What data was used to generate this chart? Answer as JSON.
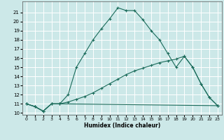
{
  "xlabel": "Humidex (Indice chaleur)",
  "bg_color": "#cce8e8",
  "grid_color": "#ffffff",
  "line_color": "#1a6b5a",
  "xlim": [
    -0.5,
    23.5
  ],
  "ylim": [
    9.8,
    22.2
  ],
  "xticks": [
    0,
    1,
    2,
    3,
    4,
    5,
    6,
    7,
    8,
    9,
    10,
    11,
    12,
    13,
    14,
    15,
    16,
    17,
    18,
    19,
    20,
    21,
    22,
    23
  ],
  "yticks": [
    10,
    11,
    12,
    13,
    14,
    15,
    16,
    17,
    18,
    19,
    20,
    21
  ],
  "line1_x": [
    0,
    1,
    2,
    3,
    4,
    5,
    6,
    7,
    8,
    9,
    10,
    11,
    12,
    13,
    14,
    15,
    16,
    17,
    18,
    19,
    20,
    21,
    22,
    23
  ],
  "line1_y": [
    11.0,
    10.7,
    10.2,
    11.0,
    11.0,
    12.0,
    15.0,
    16.5,
    18.0,
    19.2,
    20.3,
    21.5,
    21.2,
    21.2,
    20.2,
    19.0,
    18.0,
    16.5,
    15.0,
    16.2,
    15.0,
    13.2,
    11.7,
    10.8
  ],
  "line2_x": [
    0,
    1,
    2,
    3,
    4,
    23
  ],
  "line2_y": [
    11.0,
    10.7,
    10.2,
    11.0,
    11.0,
    10.8
  ],
  "line3_x": [
    0,
    1,
    2,
    3,
    4,
    5,
    6,
    7,
    8,
    9,
    10,
    11,
    12,
    13,
    14,
    15,
    16,
    17,
    18,
    19,
    20,
    21,
    22,
    23
  ],
  "line3_y": [
    11.0,
    10.7,
    10.2,
    11.0,
    11.0,
    11.2,
    11.5,
    11.8,
    12.2,
    12.7,
    13.2,
    13.7,
    14.2,
    14.6,
    14.9,
    15.2,
    15.5,
    15.7,
    15.9,
    16.2,
    15.0,
    13.2,
    11.7,
    10.8
  ]
}
